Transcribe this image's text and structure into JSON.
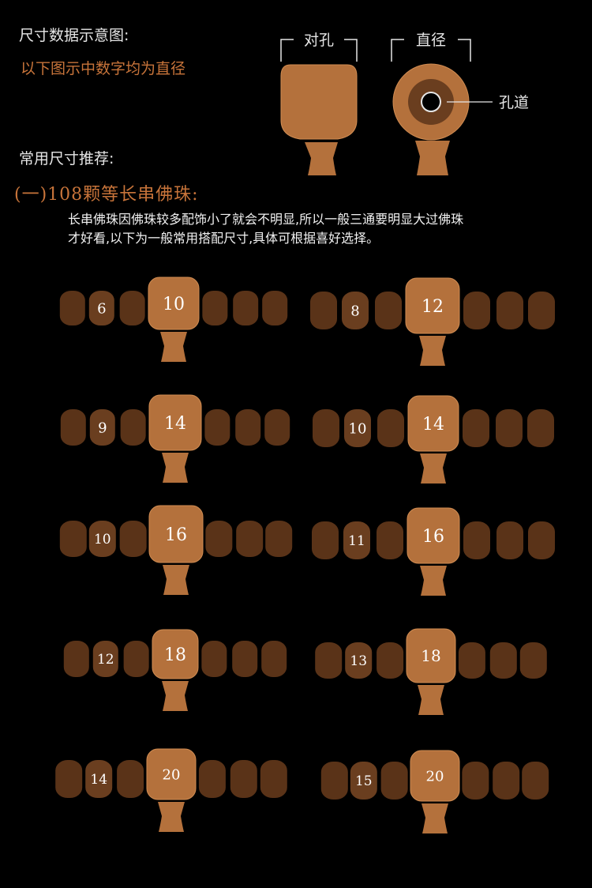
{
  "intro": {
    "title_size": "尺寸数据示意图:",
    "note": "以下图示中数字均为直径",
    "title_recommend": "常用尺寸推荐:"
  },
  "legend": {
    "label_side_hole": "对孔",
    "label_diameter": "直径",
    "label_bore": "孔道"
  },
  "section": {
    "heading": "(一)108颗等长串佛珠:",
    "desc_line1": "长串佛珠因佛珠较多配饰小了就会不明显,所以一般三通要明显大过佛珠",
    "desc_line2": "才好看,以下为一般常用搭配尺寸,具体可根据喜好选择。"
  },
  "colors": {
    "bead": "#5a3318",
    "small_bead_labeled": "#6a3e1f",
    "big_bead": "#b4713c",
    "big_bead_edge": "#d08c52",
    "stem": "#b4713c",
    "outline": "#e6e6e6",
    "text_light": "#ffffff"
  },
  "combos": [
    {
      "bead": "6",
      "guru": "10"
    },
    {
      "bead": "8",
      "guru": "12"
    },
    {
      "bead": "9",
      "guru": "14"
    },
    {
      "bead": "10",
      "guru": "14"
    },
    {
      "bead": "10",
      "guru": "16"
    },
    {
      "bead": "11",
      "guru": "16"
    },
    {
      "bead": "12",
      "guru": "18"
    },
    {
      "bead": "13",
      "guru": "18"
    },
    {
      "bead": "14",
      "guru": "20"
    },
    {
      "bead": "15",
      "guru": "20"
    }
  ]
}
